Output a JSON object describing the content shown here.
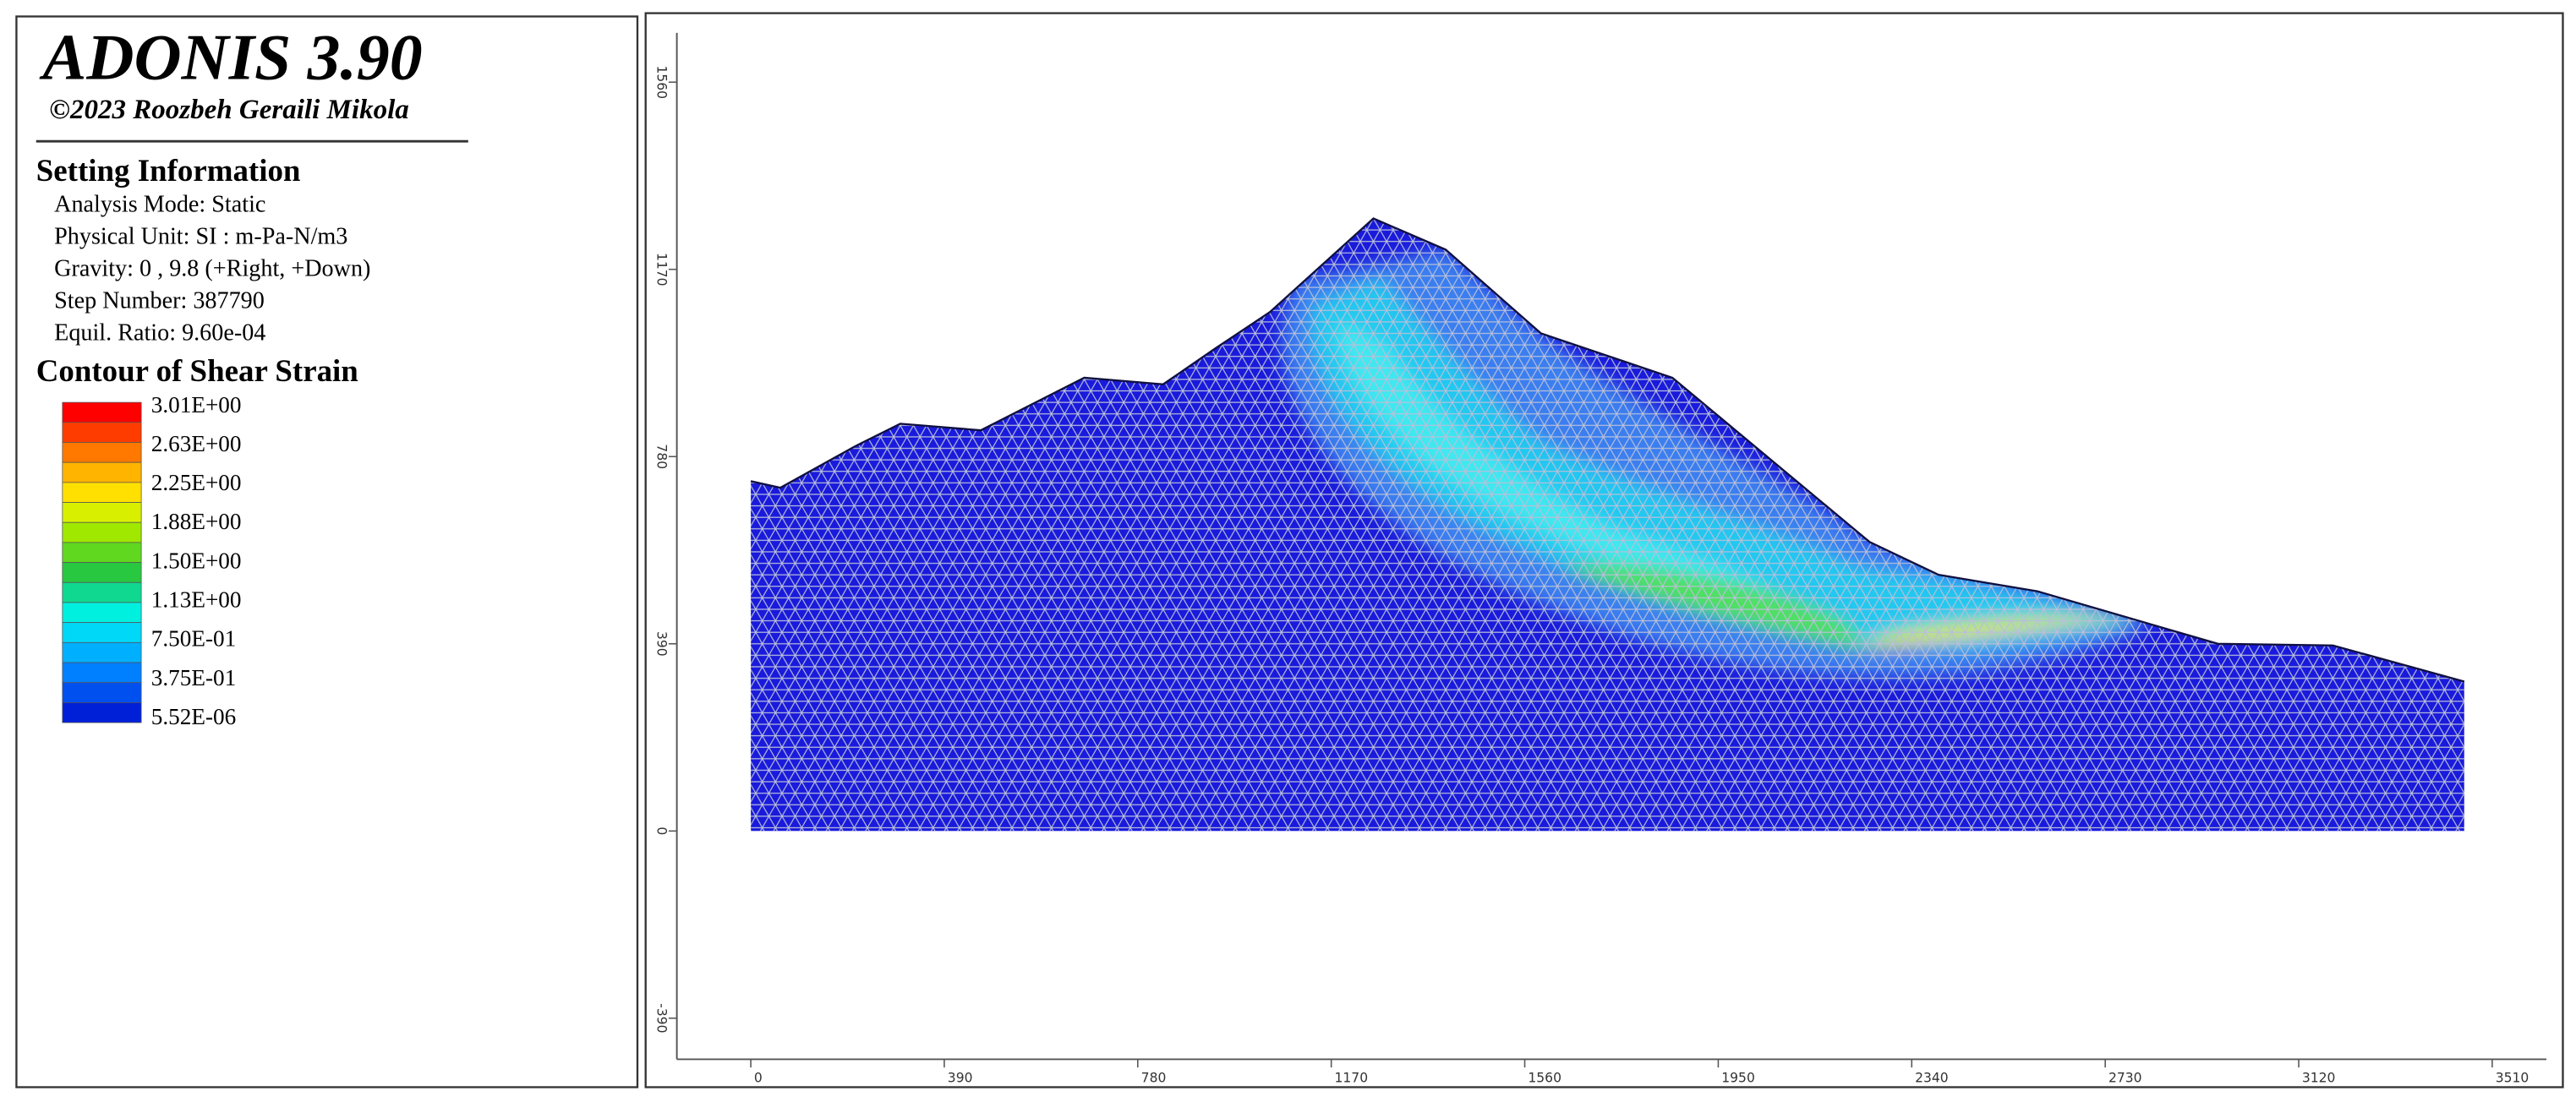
{
  "header": {
    "title": "ADONIS 3.90",
    "copyright": "©2023 Roozbeh Geraili Mikola"
  },
  "settings": {
    "heading": "Setting Information",
    "items": [
      "Analysis Mode: Static",
      "Physical Unit: SI : m-Pa-N/m3",
      "Gravity: 0 , 9.8 (+Right, +Down)",
      "Step Number: 387790",
      "Equil. Ratio: 9.60e-04"
    ]
  },
  "legend": {
    "heading": "Contour of Shear Strain",
    "labels": [
      "3.01E+00",
      "2.63E+00",
      "2.25E+00",
      "1.88E+00",
      "1.50E+00",
      "1.13E+00",
      "7.50E-01",
      "3.75E-01",
      "5.52E-06"
    ],
    "colors": [
      "#ff0000",
      "#ff3c00",
      "#ff7800",
      "#ffb400",
      "#ffe000",
      "#d8f000",
      "#a0e800",
      "#60d820",
      "#28c840",
      "#10d890",
      "#00f0e0",
      "#00d8f8",
      "#00b0ff",
      "#0080ff",
      "#0050f0",
      "#0020d8"
    ]
  },
  "axes": {
    "x_ticks": [
      "0",
      "390",
      "780",
      "1170",
      "1560",
      "1950",
      "2340",
      "2730",
      "3120",
      "3510"
    ],
    "y_ticks": [
      "1560",
      "1170",
      "780",
      "390",
      "0",
      "-390"
    ]
  }
}
